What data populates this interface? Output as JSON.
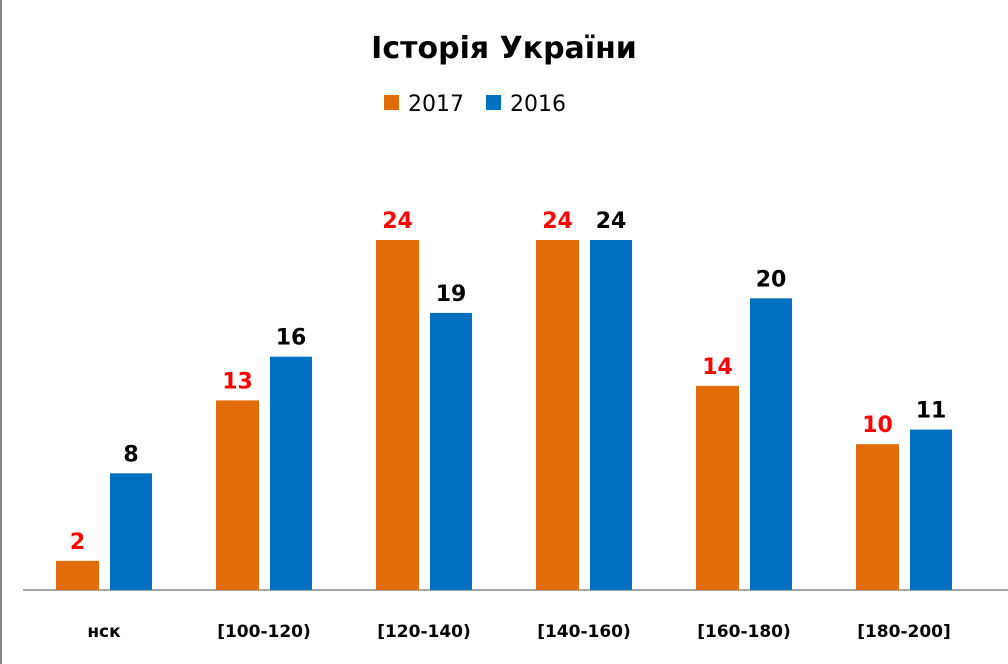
{
  "chart_data": {
    "type": "bar",
    "title": "Історія України",
    "categories": [
      "нск",
      "[100-120)",
      "[120-140)",
      "[140-160)",
      "[160-180)",
      "[180-200]"
    ],
    "series": [
      {
        "name": "2017",
        "values": [
          2,
          13,
          24,
          24,
          14,
          10
        ],
        "color": "#E36C0A",
        "label_color": "#FF0000"
      },
      {
        "name": "2016",
        "values": [
          8,
          16,
          19,
          24,
          20,
          11
        ],
        "color": "#0070C0",
        "label_color": "#000000"
      }
    ],
    "xlabel": "",
    "ylabel": "",
    "ylim": [
      0,
      26
    ],
    "grid": false,
    "legend": "top-center"
  }
}
